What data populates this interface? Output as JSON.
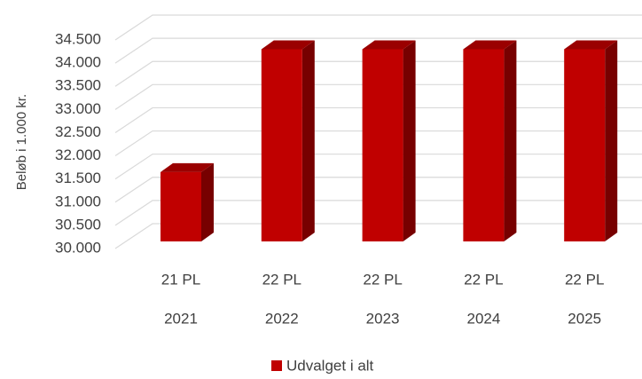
{
  "chart_data": {
    "type": "bar3d",
    "y_axis_label": "Beløb i 1.000 kr.",
    "categories": [
      "21 PL",
      "22 PL",
      "22 PL",
      "22 PL",
      "22 PL"
    ],
    "category_years": [
      "2021",
      "2022",
      "2023",
      "2024",
      "2025"
    ],
    "series": [
      {
        "name": "Udvalget i alt",
        "color": "#c00000",
        "values": [
          31650,
          34300,
          34300,
          34300,
          34300
        ]
      }
    ],
    "ylim": [
      30000,
      34500
    ],
    "yticks": [
      {
        "value": 30000,
        "label": "30.000"
      },
      {
        "value": 30500,
        "label": "30.500"
      },
      {
        "value": 31000,
        "label": "31.000"
      },
      {
        "value": 31500,
        "label": "31.500"
      },
      {
        "value": 32000,
        "label": "32.000"
      },
      {
        "value": 32500,
        "label": "32.500"
      },
      {
        "value": 33000,
        "label": "33.000"
      },
      {
        "value": 33500,
        "label": "33.500"
      },
      {
        "value": 34000,
        "label": "34.000"
      },
      {
        "value": 34500,
        "label": "34.500"
      }
    ],
    "grid": true,
    "legend": "bottom"
  }
}
